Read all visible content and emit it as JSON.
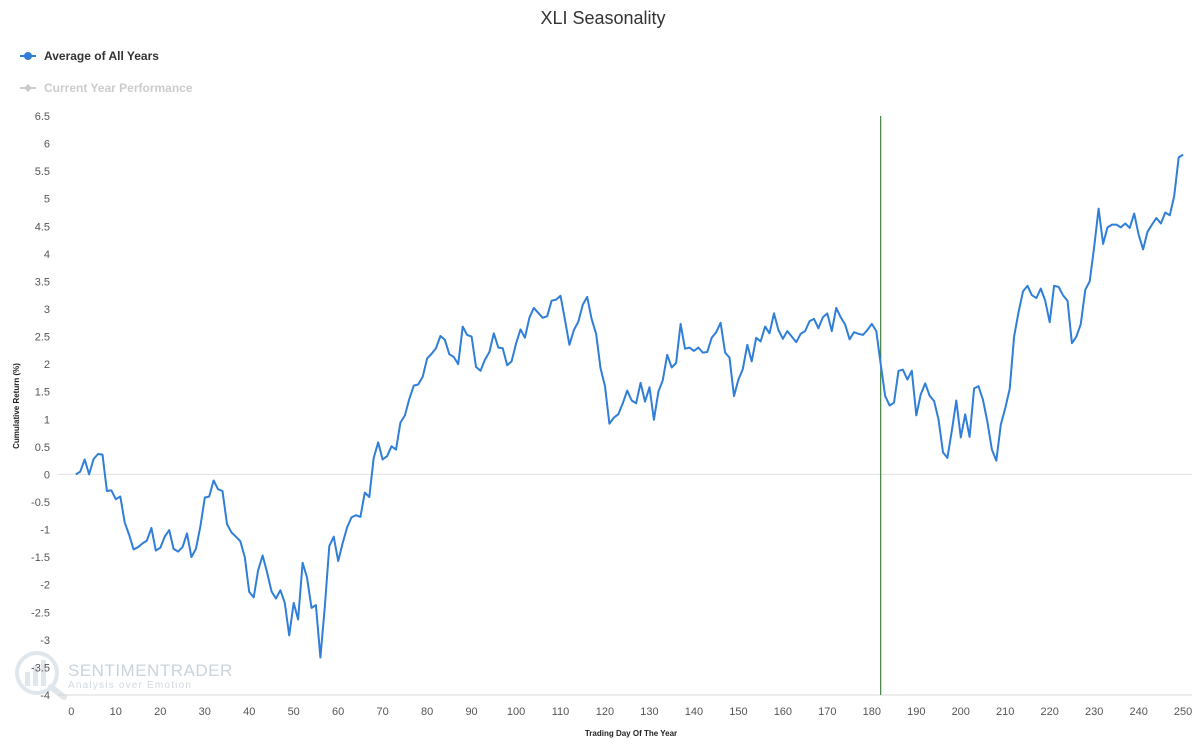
{
  "chart_data": {
    "type": "line",
    "title": "XLI Seasonality",
    "xlabel": "Trading Day Of The Year",
    "ylabel": "Cumulative Return (%)",
    "xlim": [
      -3,
      252
    ],
    "ylim": [
      -4,
      6.5
    ],
    "x_ticks": [
      0,
      10,
      20,
      30,
      40,
      50,
      60,
      70,
      80,
      90,
      100,
      110,
      120,
      130,
      140,
      150,
      160,
      170,
      180,
      190,
      200,
      210,
      220,
      230,
      240,
      250
    ],
    "y_ticks": [
      -4,
      -3.5,
      -3,
      -2.5,
      -2,
      -1.5,
      -1,
      -0.5,
      0,
      0.5,
      1,
      1.5,
      2,
      2.5,
      3,
      3.5,
      4,
      4.5,
      5,
      5.5,
      6,
      6.5
    ],
    "legend_position": "top-left",
    "current_day_marker": 182,
    "series": [
      {
        "name": "Average of All Years",
        "color": "#2f7ed8",
        "visible": true,
        "x_start": 1,
        "values": [
          0.0,
          0.05,
          0.27,
          0.0,
          0.28,
          0.37,
          0.36,
          -0.3,
          -0.29,
          -0.45,
          -0.4,
          -0.87,
          -1.1,
          -1.36,
          -1.32,
          -1.25,
          -1.2,
          -0.97,
          -1.38,
          -1.33,
          -1.13,
          -1.01,
          -1.35,
          -1.4,
          -1.32,
          -1.07,
          -1.5,
          -1.35,
          -0.95,
          -0.42,
          -0.4,
          -0.11,
          -0.27,
          -0.3,
          -0.9,
          -1.05,
          -1.13,
          -1.21,
          -1.5,
          -2.13,
          -2.23,
          -1.74,
          -1.47,
          -1.77,
          -2.12,
          -2.25,
          -2.1,
          -2.33,
          -2.92,
          -2.33,
          -2.63,
          -1.6,
          -1.87,
          -2.42,
          -2.37,
          -3.32,
          -2.4,
          -1.3,
          -1.13,
          -1.57,
          -1.25,
          -0.96,
          -0.78,
          -0.74,
          -0.77,
          -0.33,
          -0.41,
          0.3,
          0.58,
          0.27,
          0.33,
          0.51,
          0.45,
          0.94,
          1.07,
          1.37,
          1.61,
          1.63,
          1.77,
          2.1,
          2.19,
          2.29,
          2.51,
          2.44,
          2.18,
          2.13,
          2.0,
          2.68,
          2.53,
          2.5,
          1.95,
          1.88,
          2.08,
          2.22,
          2.56,
          2.3,
          2.29,
          1.98,
          2.05,
          2.37,
          2.63,
          2.48,
          2.84,
          3.02,
          2.93,
          2.84,
          2.87,
          3.15,
          3.17,
          3.24,
          2.8,
          2.35,
          2.62,
          2.77,
          3.08,
          3.22,
          2.82,
          2.55,
          1.93,
          1.6,
          0.92,
          1.03,
          1.09,
          1.29,
          1.52,
          1.34,
          1.29,
          1.66,
          1.32,
          1.58,
          0.99,
          1.5,
          1.71,
          2.17,
          1.94,
          2.02,
          2.73,
          2.28,
          2.3,
          2.24,
          2.3,
          2.21,
          2.22,
          2.48,
          2.58,
          2.75,
          2.21,
          2.12,
          1.42,
          1.72,
          1.91,
          2.35,
          2.05,
          2.48,
          2.41,
          2.68,
          2.56,
          2.92,
          2.62,
          2.46,
          2.6,
          2.5,
          2.4,
          2.55,
          2.6,
          2.78,
          2.82,
          2.65,
          2.85,
          2.92,
          2.6,
          3.02,
          2.85,
          2.72,
          2.45,
          2.58,
          2.55,
          2.53,
          2.62,
          2.73,
          2.6,
          2.0,
          1.42,
          1.25,
          1.3,
          1.88,
          1.9,
          1.72,
          1.88,
          1.07,
          1.45,
          1.65,
          1.43,
          1.33,
          1.0,
          0.4,
          0.3,
          0.8,
          1.34,
          0.67,
          1.09,
          0.68,
          1.56,
          1.6,
          1.35,
          0.95,
          0.45,
          0.25,
          0.9,
          1.2,
          1.55,
          2.5,
          2.95,
          3.32,
          3.42,
          3.25,
          3.2,
          3.37,
          3.15,
          2.76,
          3.42,
          3.4,
          3.25,
          3.15,
          2.38,
          2.5,
          2.73,
          3.35,
          3.5,
          4.13,
          4.82,
          4.18,
          4.48,
          4.53,
          4.53,
          4.48,
          4.55,
          4.47,
          4.73,
          4.35,
          4.08,
          4.4,
          4.53,
          4.65,
          4.55,
          4.75,
          4.7,
          5.05,
          5.75,
          5.8
        ]
      },
      {
        "name": "Current Year Performance",
        "color": "#cccccc",
        "visible": false,
        "values": []
      }
    ]
  },
  "watermark": {
    "name": "SENTIMENTRADER",
    "tagline": "Analysis over Emotion"
  }
}
